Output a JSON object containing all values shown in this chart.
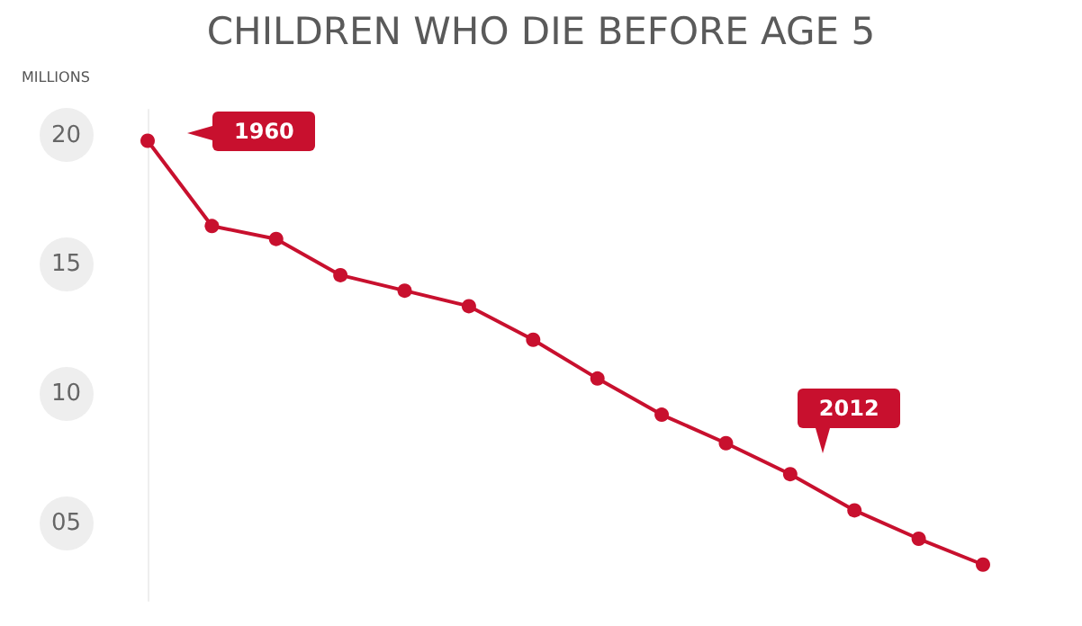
{
  "chart_data": {
    "type": "line",
    "title": "CHILDREN WHO DIE BEFORE AGE 5",
    "ylabel": "MILLIONS",
    "categories": [
      null,
      null,
      null,
      null,
      null,
      null,
      null,
      null,
      null,
      null,
      null,
      null,
      null,
      null
    ],
    "series": [
      {
        "color": "#c8102e",
        "values": [
          19.8,
          16.5,
          16.0,
          14.6,
          14.0,
          13.4,
          12.1,
          10.6,
          9.2,
          8.1,
          6.9,
          5.5,
          4.4,
          3.4
        ]
      }
    ],
    "ylim": [
      2,
      21
    ],
    "yticks": [
      {
        "value": 5,
        "label": "05"
      },
      10,
      15,
      20
    ],
    "annotations": [
      "1960",
      "2012"
    ],
    "grid": false,
    "marker": "circle",
    "line_style": "solid"
  }
}
